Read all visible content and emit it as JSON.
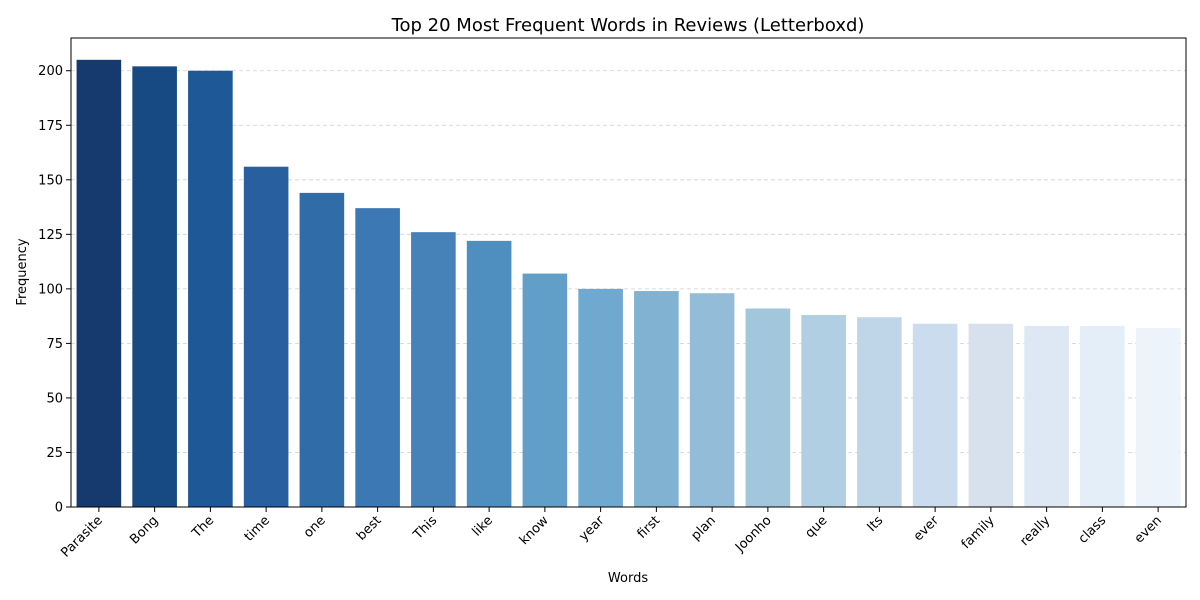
{
  "chart_data": {
    "type": "bar",
    "title": "Top 20 Most Frequent Words in Reviews (Letterboxd)",
    "xlabel": "Words",
    "ylabel": "Frequency",
    "categories": [
      "Parasite",
      "Bong",
      "The",
      "time",
      "one",
      "best",
      "This",
      "like",
      "know",
      "year",
      "first",
      "plan",
      "Joonho",
      "que",
      "Its",
      "ever",
      "family",
      "really",
      "class",
      "even"
    ],
    "values": [
      205,
      202,
      200,
      156,
      144,
      137,
      126,
      122,
      107,
      100,
      99,
      98,
      91,
      88,
      87,
      84,
      84,
      83,
      83,
      82
    ],
    "ylim": [
      0,
      215
    ],
    "yticks": [
      0,
      25,
      50,
      75,
      100,
      125,
      150,
      175,
      200
    ],
    "grid": true,
    "colors": [
      "#163a6e",
      "#174a82",
      "#1f5896",
      "#285f9e",
      "#2f6ca8",
      "#3c79b4",
      "#4682b8",
      "#4f8fbf",
      "#619ec8",
      "#70a9d0",
      "#81b2d2",
      "#92bcd8",
      "#a2c7dd",
      "#b1cfe2",
      "#bfd6e8",
      "#cbdcef",
      "#d6e1ed",
      "#dee8f4",
      "#e4eef8",
      "#edf3fb"
    ]
  }
}
